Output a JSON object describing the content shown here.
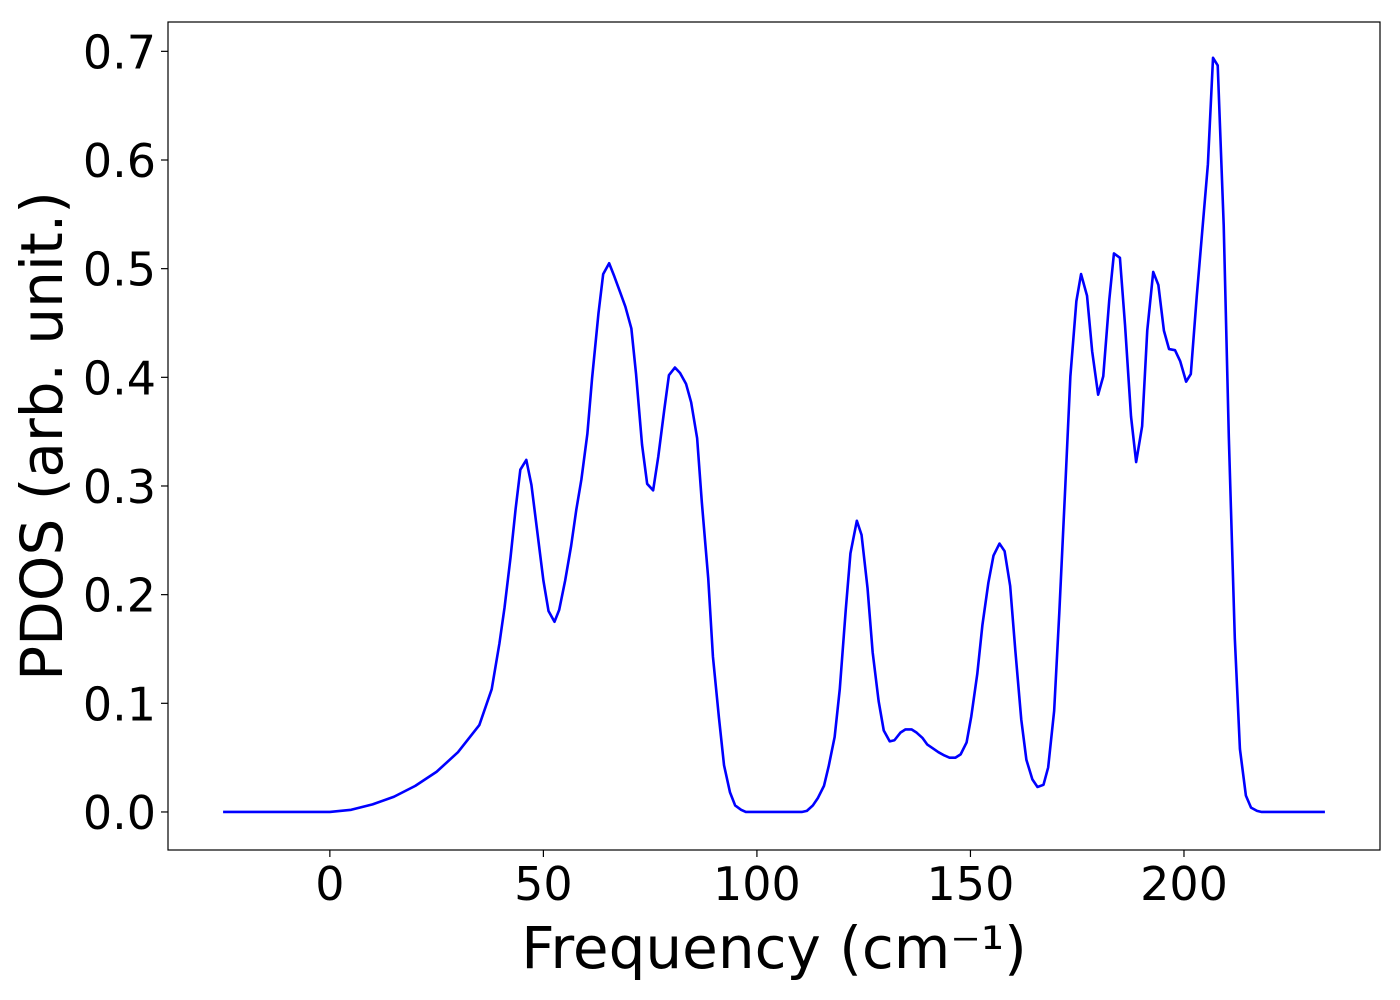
{
  "chart_data": {
    "type": "line",
    "xlabel": "Frequency (cm⁻¹)",
    "ylabel": "PDOS (arb. unit.)",
    "xlim": [
      -37.9,
      245.9
    ],
    "ylim": [
      -0.035,
      0.727
    ],
    "xticks": [
      0,
      50,
      100,
      150,
      200
    ],
    "yticks": [
      {
        "value": 0,
        "label": "0.0"
      },
      0.1,
      0.2,
      0.3,
      0.4,
      0.5,
      0.6,
      0.7
    ],
    "series": [
      {
        "color": "#0000ff",
        "x": [
          -25,
          0,
          5,
          10,
          15,
          20,
          25,
          30,
          35,
          37.9,
          39.7,
          40.9,
          42.3,
          43.5,
          44.6,
          46.0,
          47.2,
          48.6,
          50,
          51.2,
          52.6,
          53.7,
          55.1,
          56.5,
          57.7,
          58.9,
          60.3,
          61.4,
          62.9,
          64.0,
          65.4,
          66.6,
          68.0,
          69.2,
          70.6,
          71.7,
          73.1,
          74.3,
          75.7,
          76.9,
          78.3,
          79.4,
          80.8,
          82.0,
          83.4,
          84.6,
          86.0,
          87.1,
          88.6,
          89.7,
          91.1,
          92.3,
          93.7,
          94.9,
          96.3,
          97.4,
          110.5,
          111.7,
          113.1,
          114.3,
          115.7,
          116.8,
          118.2,
          119.4,
          120.8,
          121.9,
          123.4,
          124.5,
          125.9,
          127.1,
          128.5,
          129.7,
          131.1,
          132.2,
          133.6,
          134.8,
          136.2,
          137.4,
          138.8,
          139.9,
          141.4,
          142.5,
          143.9,
          145.1,
          146.5,
          147.7,
          149.1,
          150.2,
          151.6,
          152.8,
          154.2,
          155.4,
          156.8,
          158.0,
          159.3,
          160.5,
          161.9,
          163.1,
          164.5,
          165.7,
          167.1,
          168.2,
          169.6,
          170.8,
          172.2,
          173.4,
          174.8,
          175.9,
          177.3,
          178.5,
          179.9,
          181.1,
          182.5,
          183.6,
          185.0,
          186.2,
          187.6,
          188.8,
          190.2,
          191.4,
          192.8,
          194.0,
          195.3,
          196.5,
          197.9,
          199.1,
          200.5,
          201.6,
          203.0,
          205.6,
          206.8,
          207.9,
          209.3,
          210.5,
          211.9,
          213.1,
          214.5,
          215.7,
          217.1,
          218.2,
          233
        ],
        "values": [
          0,
          0,
          0.002,
          0.007,
          0.014,
          0.024,
          0.037,
          0.055,
          0.08,
          0.113,
          0.155,
          0.188,
          0.234,
          0.279,
          0.315,
          0.324,
          0.301,
          0.257,
          0.213,
          0.185,
          0.175,
          0.186,
          0.213,
          0.245,
          0.278,
          0.306,
          0.348,
          0.399,
          0.459,
          0.495,
          0.505,
          0.493,
          0.478,
          0.465,
          0.445,
          0.403,
          0.338,
          0.302,
          0.296,
          0.327,
          0.37,
          0.402,
          0.409,
          0.404,
          0.394,
          0.377,
          0.344,
          0.285,
          0.215,
          0.143,
          0.087,
          0.043,
          0.018,
          0.006,
          0.002,
          0,
          0,
          0.001,
          0.006,
          0.013,
          0.024,
          0.042,
          0.069,
          0.113,
          0.186,
          0.238,
          0.268,
          0.255,
          0.206,
          0.147,
          0.102,
          0.075,
          0.065,
          0.066,
          0.073,
          0.076,
          0.076,
          0.073,
          0.068,
          0.062,
          0.058,
          0.055,
          0.052,
          0.05,
          0.05,
          0.053,
          0.064,
          0.088,
          0.127,
          0.172,
          0.211,
          0.236,
          0.247,
          0.24,
          0.208,
          0.149,
          0.085,
          0.048,
          0.03,
          0.023,
          0.025,
          0.041,
          0.093,
          0.183,
          0.299,
          0.401,
          0.47,
          0.495,
          0.475,
          0.424,
          0.384,
          0.401,
          0.471,
          0.514,
          0.51,
          0.448,
          0.364,
          0.322,
          0.355,
          0.443,
          0.497,
          0.485,
          0.443,
          0.426,
          0.425,
          0.415,
          0.396,
          0.403,
          0.475,
          0.596,
          0.694,
          0.687,
          0.54,
          0.345,
          0.16,
          0.058,
          0.015,
          0.004,
          0.001,
          0,
          0
        ]
      }
    ]
  }
}
